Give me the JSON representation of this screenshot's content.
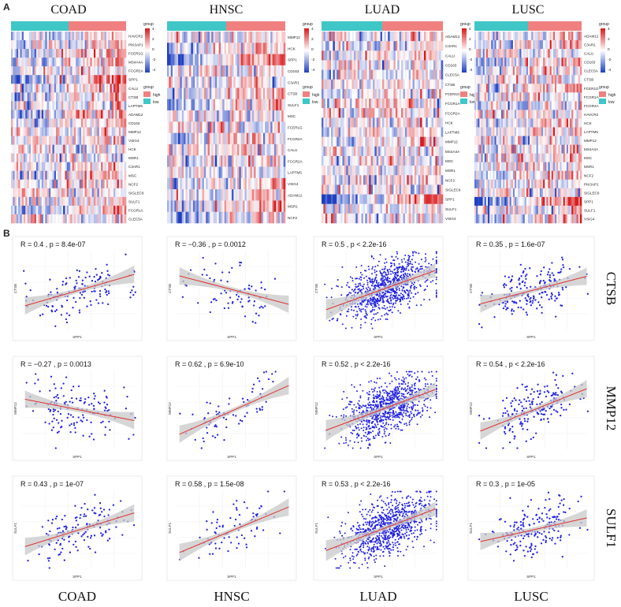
{
  "panel_labels": [
    "A",
    "B"
  ],
  "cancers": [
    "COAD",
    "HNSC",
    "LUAD",
    "LUSC"
  ],
  "genes": [
    "CTSB",
    "MMP12",
    "SULF1"
  ],
  "x_gene": "SPP1",
  "colors": {
    "high": "#f08080",
    "low": "#3fc6c6",
    "heat_max": "#d7191c",
    "heat_mid": "#ffffff",
    "heat_min": "#1f3fbf",
    "points": "#2424e0",
    "line": "#e03030",
    "band": "#c8c8c8"
  },
  "heatmap": {
    "legend_title": "group",
    "legend_items": [
      "high",
      "low"
    ],
    "scale_ticks": [
      "4",
      "2",
      "0",
      "-2",
      "-4"
    ],
    "panels": [
      {
        "cancer": "COAD",
        "genes": [
          "HAVCR2",
          "PIK3AP1",
          "FCER1G",
          "MS4A4A",
          "FCGR2A",
          "SPP1",
          "CALU",
          "CTSB",
          "LAPTM5",
          "ADAM12",
          "CD163",
          "MMP12",
          "VSIG4",
          "HCK",
          "MSR1",
          "C3AR1",
          "MSC",
          "NCF2",
          "SIGLEC9",
          "SULF1",
          "FCGR1A",
          "CLEC5A"
        ]
      },
      {
        "cancer": "HNSC",
        "genes": [
          "MMP12",
          "HCK",
          "SPP1",
          "CD163",
          "C3AR1",
          "CTSB",
          "SULF1",
          "MSC",
          "FCER1G",
          "FCGR2A",
          "CALU",
          "FCGR2A",
          "LAPTM5",
          "VSIG4",
          "ADAM12",
          "MSR1",
          "NCF2"
        ]
      },
      {
        "cancer": "LUAD",
        "genes": [
          "ADAM12",
          "C3AR1",
          "CALU",
          "CD163",
          "CLEC5A",
          "CTSB",
          "FCER1G",
          "FCGR1A",
          "FCGR2A",
          "HCK",
          "LAPTM5",
          "MMP12",
          "MS4A4A",
          "MSC",
          "MSR1",
          "NCF2",
          "SIGLEC9",
          "SPP1",
          "SULF1",
          "VSIG4"
        ]
      },
      {
        "cancer": "LUSC",
        "genes": [
          "ADAM12",
          "C3AR1",
          "CALU",
          "CD163",
          "CLEC5A",
          "CTSB",
          "FCER1G",
          "FCGR1A",
          "FCGR2A",
          "HAVCR2",
          "HCK",
          "LAPTM5",
          "MMP12",
          "MS4A4A",
          "MSC",
          "MSR1",
          "NCF2",
          "PIK3AP1",
          "SIGLEC9",
          "SPP1",
          "SULF1",
          "VSIG4"
        ]
      }
    ]
  },
  "chart_data": {
    "type": "scatter",
    "xlabel": "SPP1",
    "panels": [
      {
        "gene": "CTSB",
        "cancer": "COAD",
        "stat": "R = 0.4 , p = 8.4e-07",
        "n": 140,
        "slope": 0.4
      },
      {
        "gene": "CTSB",
        "cancer": "HNSC",
        "stat": "R = −0.36 , p = 0.0012",
        "n": 75,
        "slope": -0.36
      },
      {
        "gene": "CTSB",
        "cancer": "LUAD",
        "stat": "R = 0.5 , p < 2.2e-16",
        "n": 900,
        "slope": 0.5
      },
      {
        "gene": "CTSB",
        "cancer": "LUSC",
        "stat": "R = 0.35 , p = 1.6e-07",
        "n": 190,
        "slope": 0.35
      },
      {
        "gene": "MMP12",
        "cancer": "COAD",
        "stat": "R = −0.27 , p = 0.0013",
        "n": 140,
        "slope": -0.27
      },
      {
        "gene": "MMP12",
        "cancer": "HNSC",
        "stat": "R = 0.62 , p = 6.9e-10",
        "n": 75,
        "slope": 0.62
      },
      {
        "gene": "MMP12",
        "cancer": "LUAD",
        "stat": "R = 0.52 , p < 2.2e-16",
        "n": 900,
        "slope": 0.52
      },
      {
        "gene": "MMP12",
        "cancer": "LUSC",
        "stat": "R = 0.54 , p < 2.2e-16",
        "n": 190,
        "slope": 0.54
      },
      {
        "gene": "SULF1",
        "cancer": "COAD",
        "stat": "R = 0.43 , p = 1e-07",
        "n": 140,
        "slope": 0.43
      },
      {
        "gene": "SULF1",
        "cancer": "HNSC",
        "stat": "R = 0.58 , p = 1.5e-08",
        "n": 75,
        "slope": 0.58
      },
      {
        "gene": "SULF1",
        "cancer": "LUAD",
        "stat": "R = 0.53 , p < 2.2e-16",
        "n": 900,
        "slope": 0.53
      },
      {
        "gene": "SULF1",
        "cancer": "LUSC",
        "stat": "R = 0.3 , p = 1e-05",
        "n": 190,
        "slope": 0.3
      }
    ]
  }
}
